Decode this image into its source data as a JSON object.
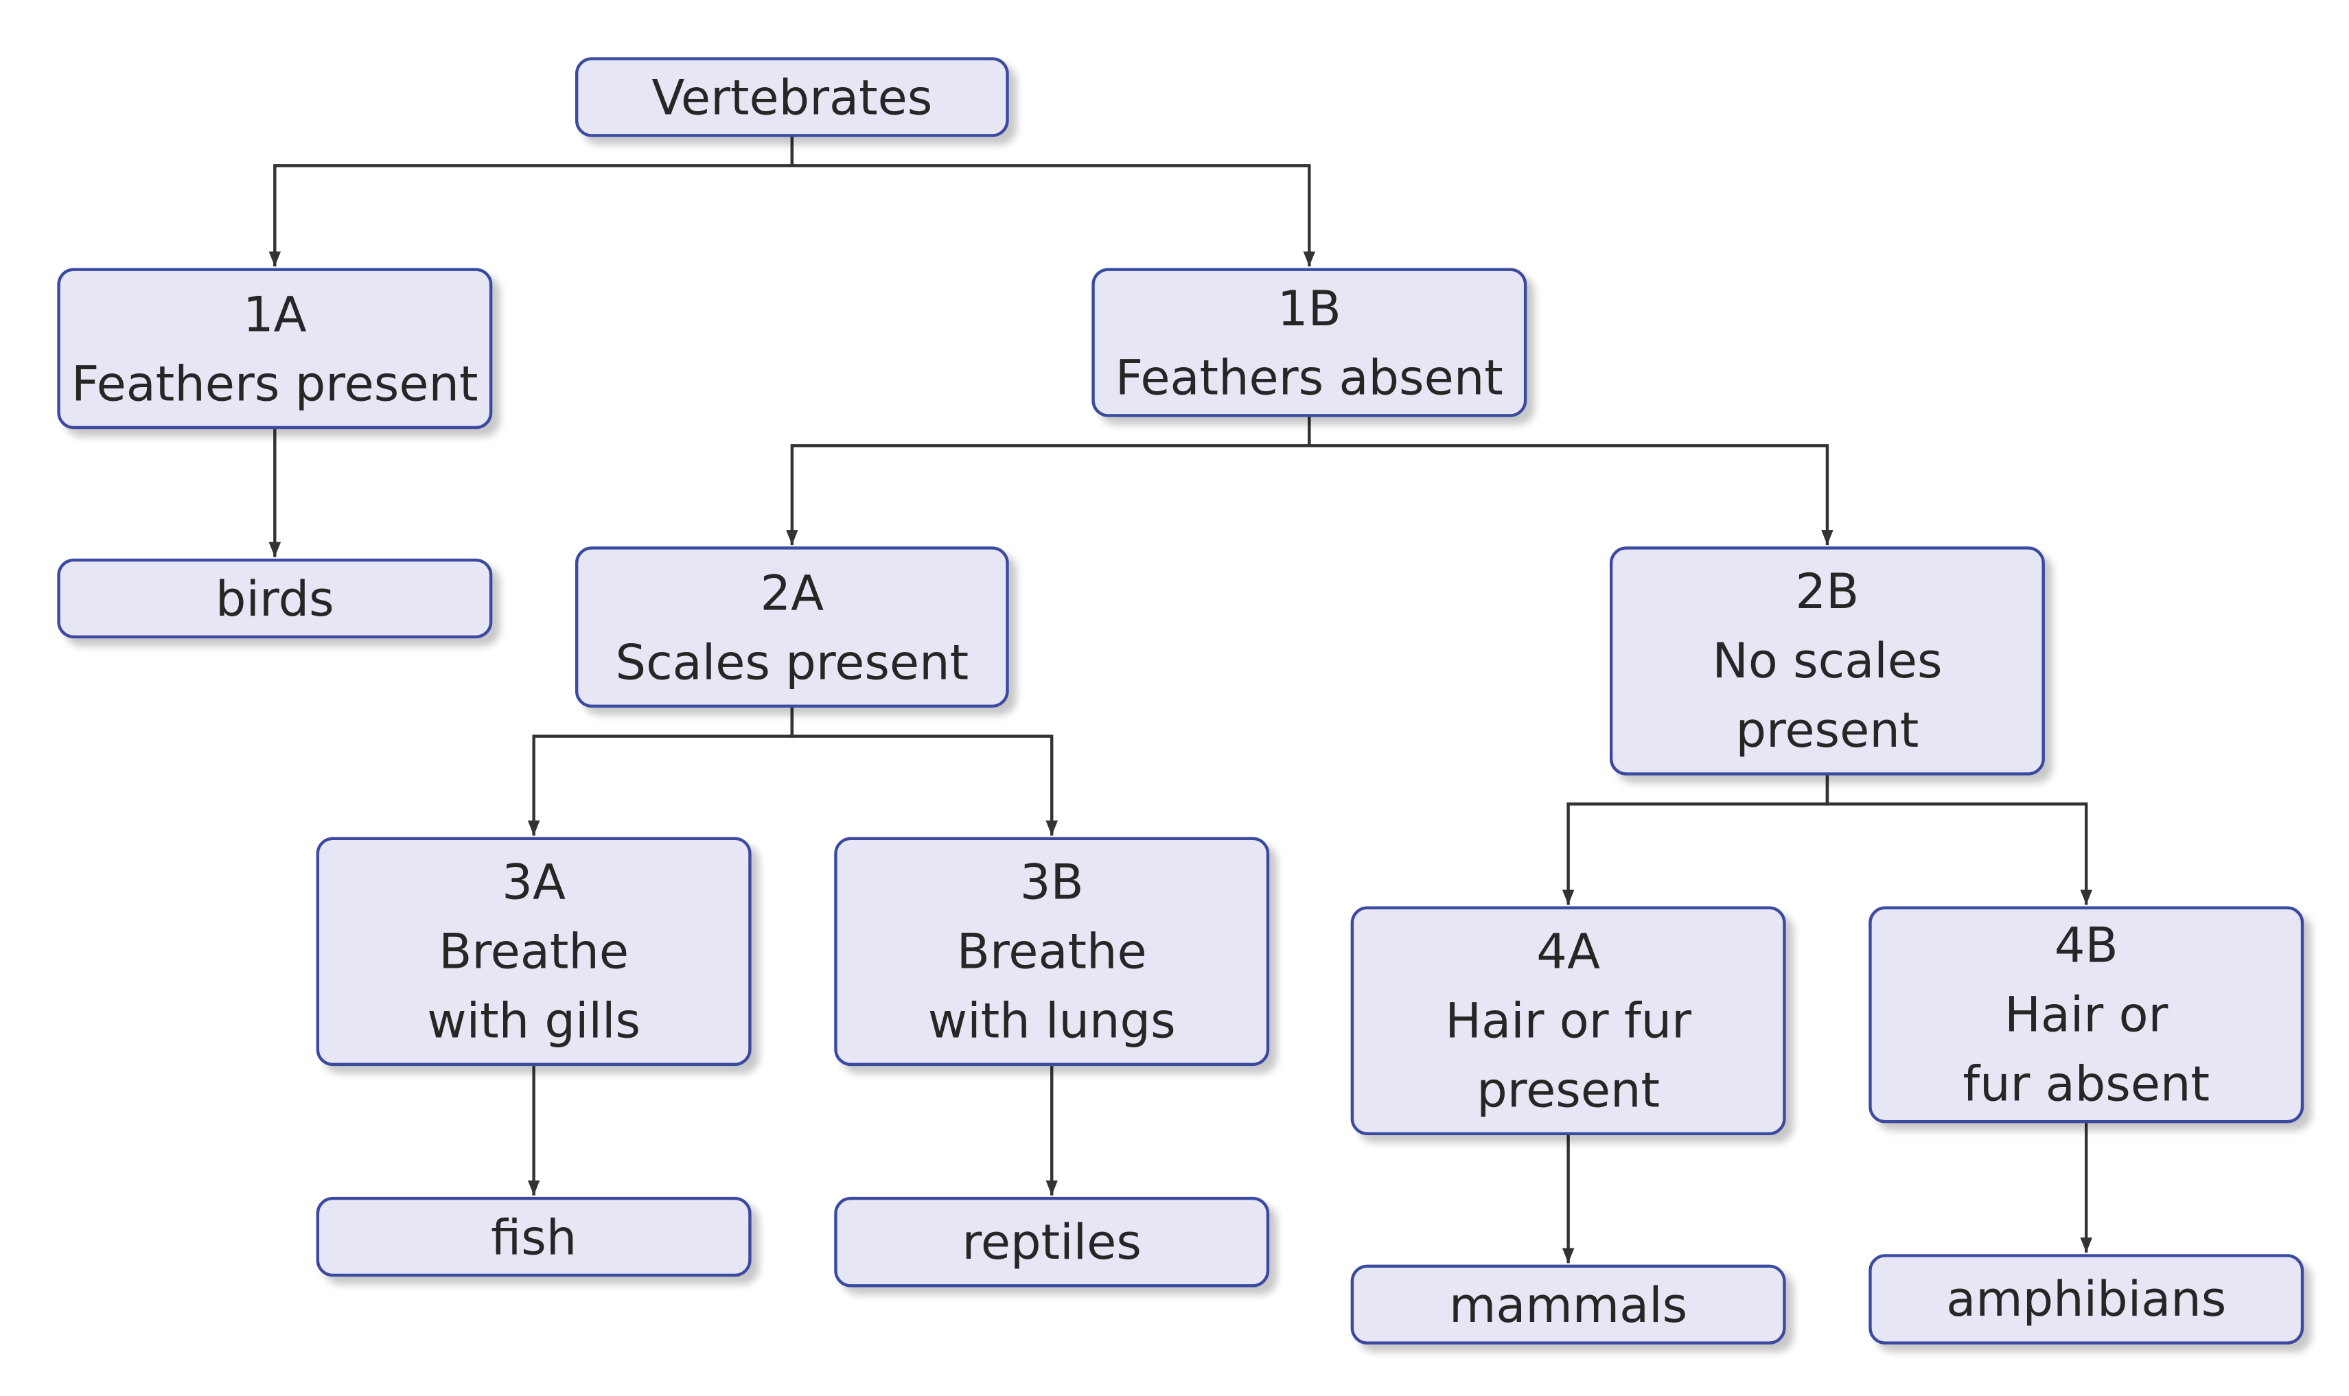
{
  "nodes": {
    "root": {
      "lines": [
        "Vertebrates"
      ]
    },
    "n1a": {
      "lines": [
        "1A",
        "Feathers present"
      ]
    },
    "n1b": {
      "lines": [
        "1B",
        "Feathers absent"
      ]
    },
    "birds": {
      "lines": [
        "birds"
      ]
    },
    "n2a": {
      "lines": [
        "2A",
        "Scales present"
      ]
    },
    "n2b": {
      "lines": [
        "2B",
        "No scales",
        "present"
      ]
    },
    "n3a": {
      "lines": [
        "3A",
        "Breathe",
        "with gills"
      ]
    },
    "n3b": {
      "lines": [
        "3B",
        "Breathe",
        "with lungs"
      ]
    },
    "n4a": {
      "lines": [
        "4A",
        "Hair or fur",
        "present"
      ]
    },
    "n4b": {
      "lines": [
        "4B",
        "Hair or",
        "fur absent"
      ]
    },
    "fish": {
      "lines": [
        "fish"
      ]
    },
    "reptiles": {
      "lines": [
        "reptiles"
      ]
    },
    "mammals": {
      "lines": [
        "mammals"
      ]
    },
    "amphibians": {
      "lines": [
        "amphibians"
      ]
    }
  },
  "edges": [
    {
      "from": "root",
      "to": [
        "n1a",
        "n1b"
      ]
    },
    {
      "from": "n1a",
      "to": [
        "birds"
      ]
    },
    {
      "from": "n1b",
      "to": [
        "n2a",
        "n2b"
      ]
    },
    {
      "from": "n2a",
      "to": [
        "n3a",
        "n3b"
      ]
    },
    {
      "from": "n2b",
      "to": [
        "n4a",
        "n4b"
      ]
    },
    {
      "from": "n3a",
      "to": [
        "fish"
      ]
    },
    {
      "from": "n3b",
      "to": [
        "reptiles"
      ]
    },
    {
      "from": "n4a",
      "to": [
        "mammals"
      ]
    },
    {
      "from": "n4b",
      "to": [
        "amphibians"
      ]
    }
  ],
  "colors": {
    "node_fill": "#e6e6f4",
    "node_border": "#3b4aa0",
    "line": "#333333",
    "text": "#262626"
  }
}
